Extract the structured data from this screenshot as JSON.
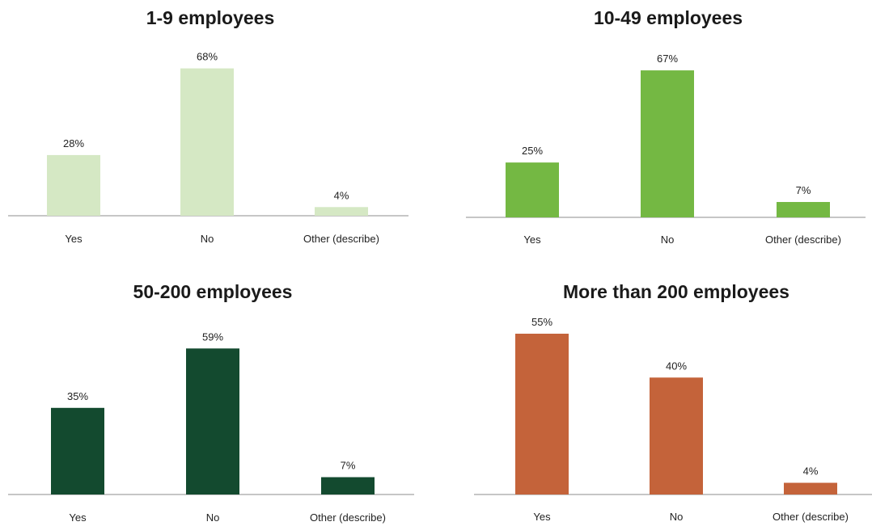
{
  "chart_data": [
    {
      "type": "bar",
      "title": "1-9 employees",
      "categories": [
        "Yes",
        "No",
        "Other (describe)"
      ],
      "values": [
        28,
        68,
        4
      ],
      "data_labels": [
        "28%",
        "68%",
        "4%"
      ],
      "color": "#d5e8c4",
      "xlabel": "",
      "ylabel": "",
      "ylim": [
        0,
        70
      ],
      "grid": false,
      "legend": "none"
    },
    {
      "type": "bar",
      "title": "10-49 employees",
      "categories": [
        "Yes",
        "No",
        "Other (describe)"
      ],
      "values": [
        25,
        67,
        7
      ],
      "data_labels": [
        "25%",
        "67%",
        "7%"
      ],
      "color": "#74b843",
      "xlabel": "",
      "ylabel": "",
      "ylim": [
        0,
        70
      ],
      "grid": false,
      "legend": "none"
    },
    {
      "type": "bar",
      "title": "50-200 employees",
      "categories": [
        "Yes",
        "No",
        "Other (describe)"
      ],
      "values": [
        35,
        59,
        7
      ],
      "data_labels": [
        "35%",
        "59%",
        "7%"
      ],
      "color": "#134a2f",
      "xlabel": "",
      "ylabel": "",
      "ylim": [
        0,
        70
      ],
      "grid": false,
      "legend": "none"
    },
    {
      "type": "bar",
      "title": "More than 200 employees",
      "categories": [
        "Yes",
        "No",
        "Other (describe)"
      ],
      "values": [
        55,
        40,
        4
      ],
      "data_labels": [
        "55%",
        "40%",
        "4%"
      ],
      "color": "#c4633a",
      "xlabel": "",
      "ylabel": "",
      "ylim": [
        0,
        60
      ],
      "grid": false,
      "legend": "none"
    }
  ]
}
